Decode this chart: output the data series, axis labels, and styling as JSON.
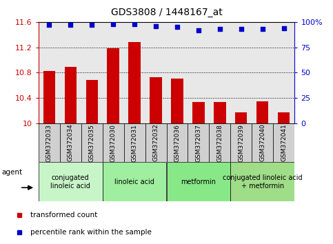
{
  "title": "GDS3808 / 1448167_at",
  "samples": [
    "GSM372033",
    "GSM372034",
    "GSM372035",
    "GSM372030",
    "GSM372031",
    "GSM372032",
    "GSM372036",
    "GSM372037",
    "GSM372038",
    "GSM372039",
    "GSM372040",
    "GSM372041"
  ],
  "bar_values": [
    10.82,
    10.89,
    10.68,
    11.18,
    11.28,
    10.73,
    10.7,
    10.33,
    10.33,
    10.17,
    10.35,
    10.17
  ],
  "dot_values": [
    97,
    97,
    97,
    98,
    98,
    96,
    95,
    92,
    93,
    93,
    93,
    94
  ],
  "ylim_left": [
    10.0,
    11.6
  ],
  "ylim_right": [
    0,
    100
  ],
  "yticks_left": [
    10.0,
    10.4,
    10.8,
    11.2,
    11.6
  ],
  "ytick_labels_left": [
    "10",
    "10.4",
    "10.8",
    "11.2",
    "11.6"
  ],
  "yticks_right": [
    0,
    25,
    50,
    75,
    100
  ],
  "ytick_labels_right": [
    "0",
    "25",
    "50",
    "75",
    "100%"
  ],
  "bar_color": "#cc0000",
  "dot_color": "#0000cc",
  "bar_width": 0.55,
  "groups": [
    {
      "label": "conjugated\nlinoleic acid",
      "start": 0,
      "end": 3,
      "color": "#c8f5c8"
    },
    {
      "label": "linoleic acid",
      "start": 3,
      "end": 6,
      "color": "#a0eea0"
    },
    {
      "label": "metformin",
      "start": 6,
      "end": 9,
      "color": "#88e888"
    },
    {
      "label": "conjugated linoleic acid\n+ metformin",
      "start": 9,
      "end": 12,
      "color": "#a0dd88"
    }
  ],
  "legend_items": [
    {
      "label": "transformed count",
      "color": "#cc0000"
    },
    {
      "label": "percentile rank within the sample",
      "color": "#0000cc"
    }
  ],
  "agent_label": "agent",
  "left_color": "#cc0000",
  "right_color": "#0000cc",
  "grid_lines": [
    10.4,
    10.8,
    11.2
  ],
  "plot_bg": "#e8e8e8",
  "cell_bg": "#d0d0d0"
}
